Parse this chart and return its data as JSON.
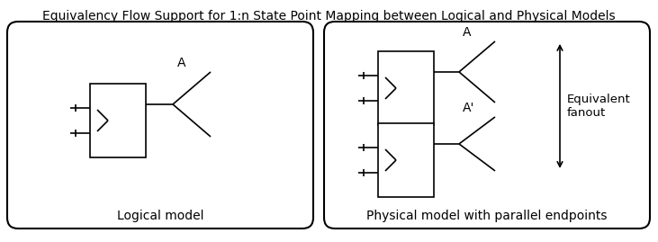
{
  "title": "Equivalency Flow Support for 1:n State Point Mapping between Logical and Physical Models",
  "title_fontsize": 10.0,
  "left_panel_label": "Logical model",
  "right_panel_label": "Physical model with parallel endpoints",
  "equiv_label": "Equivalent\nfanout",
  "label_A_logical": "A",
  "label_A_physical": "A",
  "label_Ap_physical": "A'",
  "bg_color": "#ffffff"
}
